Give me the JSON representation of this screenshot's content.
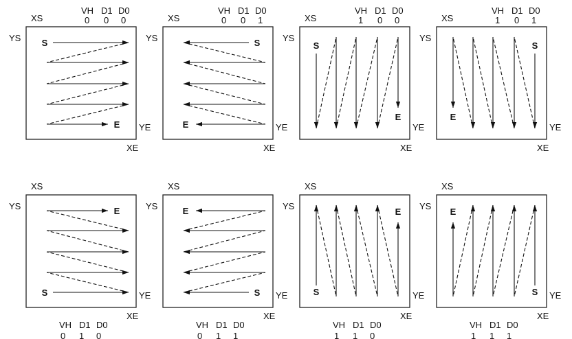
{
  "labels": {
    "xs": "XS",
    "ys": "YS",
    "xe": "XE",
    "ye": "YE",
    "start": "S",
    "end": "E",
    "bits_header": [
      "VH",
      "D1",
      "D0"
    ]
  },
  "panels": [
    {
      "bits": [
        "0",
        "0",
        "0"
      ],
      "vh": 0,
      "h_dir": "right",
      "v_dir": "down"
    },
    {
      "bits": [
        "0",
        "0",
        "1"
      ],
      "vh": 0,
      "h_dir": "left",
      "v_dir": "down"
    },
    {
      "bits": [
        "1",
        "0",
        "0"
      ],
      "vh": 1,
      "h_dir": "right",
      "v_dir": "down"
    },
    {
      "bits": [
        "1",
        "0",
        "1"
      ],
      "vh": 1,
      "h_dir": "left",
      "v_dir": "down"
    },
    {
      "bits": [
        "0",
        "1",
        "0"
      ],
      "vh": 0,
      "h_dir": "right",
      "v_dir": "up"
    },
    {
      "bits": [
        "0",
        "1",
        "1"
      ],
      "vh": 0,
      "h_dir": "left",
      "v_dir": "up"
    },
    {
      "bits": [
        "1",
        "1",
        "0"
      ],
      "vh": 1,
      "h_dir": "right",
      "v_dir": "up"
    },
    {
      "bits": [
        "1",
        "1",
        "1"
      ],
      "vh": 1,
      "h_dir": "left",
      "v_dir": "up"
    }
  ]
}
